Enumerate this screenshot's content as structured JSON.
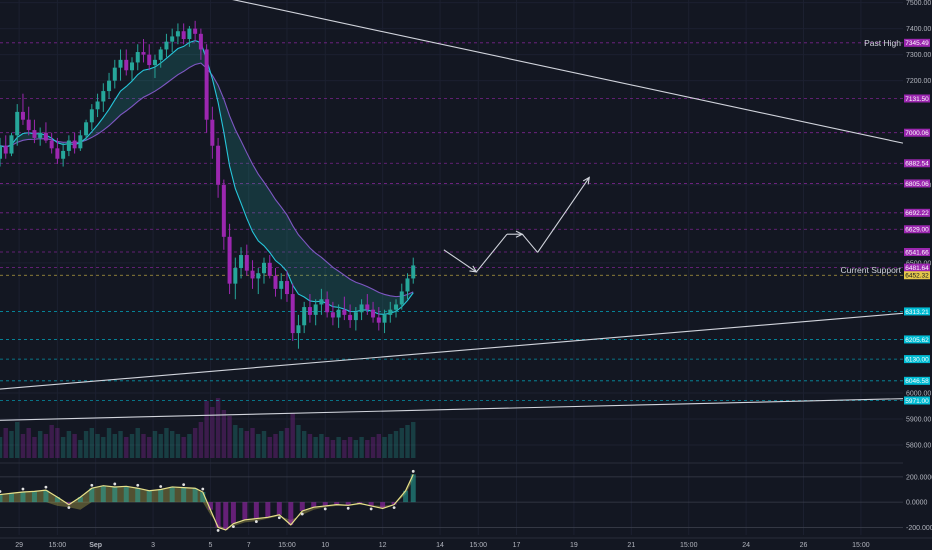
{
  "chart_data": {
    "type": "candlestick",
    "price_axis": {
      "labels": [
        "7500.00",
        "7400.00",
        "7300.00",
        "7200.00",
        "6800.00",
        "6500.00",
        "6000.00",
        "5900.00",
        "5800.00"
      ],
      "range": [
        5750,
        7510
      ]
    },
    "oscillator_axis": {
      "labels": [
        "200.0000",
        "0.0000",
        "-200.0000"
      ],
      "range": [
        -260,
        270
      ]
    },
    "time_axis": {
      "labels": [
        "29",
        "15:00",
        "Sep",
        "3",
        "5",
        "7",
        "15:00",
        "10",
        "12",
        "14",
        "15:00",
        "17",
        "19",
        "21",
        "15:00",
        "24",
        "26",
        "15:00"
      ],
      "positions": [
        0.5,
        1.5,
        2.5,
        4,
        5.5,
        6.5,
        7.5,
        8.5,
        10,
        11.5,
        12.5,
        13.5,
        15,
        16.5,
        18,
        19.5,
        21,
        22.5
      ]
    },
    "annotations": [
      {
        "text": "Past High",
        "price": 7345.49
      },
      {
        "text": "Current Support",
        "price": 6472
      }
    ],
    "price_tags": [
      {
        "label": "7345.49",
        "price": 7345.49,
        "color": "#9c27b0"
      },
      {
        "label": "7131.50",
        "price": 7131.5,
        "color": "#9c27b0"
      },
      {
        "label": "7000.06",
        "price": 7000.06,
        "color": "#9c27b0"
      },
      {
        "label": "6882.54",
        "price": 6882.54,
        "color": "#9c27b0"
      },
      {
        "label": "6805.06",
        "price": 6805.06,
        "color": "#9c27b0"
      },
      {
        "label": "6692.22",
        "price": 6692.22,
        "color": "#9c27b0"
      },
      {
        "label": "6629.00",
        "price": 6629.0,
        "color": "#9c27b0"
      },
      {
        "label": "6541.66",
        "price": 6541.66,
        "color": "#9c27b0"
      },
      {
        "label": "6481.64",
        "price": 6481.64,
        "color": "#9c27b0"
      },
      {
        "label": "6452.32",
        "price": 6452.32,
        "color": "#e6c84a"
      },
      {
        "label": "6313.21",
        "price": 6313.21,
        "color": "#00bcd4"
      },
      {
        "label": "6205.62",
        "price": 6205.62,
        "color": "#00bcd4"
      },
      {
        "label": "6130.00",
        "price": 6130.0,
        "color": "#00bcd4"
      },
      {
        "label": "6046.58",
        "price": 6046.58,
        "color": "#00bcd4"
      },
      {
        "label": "5971.00",
        "price": 5971.0,
        "color": "#00bcd4"
      }
    ],
    "trendlines": [
      {
        "name": "resistance",
        "from": [
          5.5,
          7530
        ],
        "to": [
          23.6,
          6960
        ]
      },
      {
        "name": "support",
        "from": [
          0,
          6015
        ],
        "to": [
          23.6,
          6306
        ]
      },
      {
        "name": "lower",
        "from": [
          0,
          5895
        ],
        "to": [
          23.6,
          5978
        ]
      }
    ],
    "projection_path": [
      [
        11.6,
        6550
      ],
      [
        12.45,
        6465
      ],
      [
        13.25,
        6610
      ],
      [
        13.65,
        6610
      ],
      [
        14.05,
        6540
      ],
      [
        15.4,
        6828
      ]
    ],
    "ohlc": [
      [
        0.0,
        6900,
        6980,
        6870,
        6950
      ],
      [
        0.15,
        6950,
        6990,
        6900,
        6920
      ],
      [
        0.3,
        6920,
        7000,
        6910,
        6990
      ],
      [
        0.45,
        6990,
        7110,
        6950,
        7080
      ],
      [
        0.6,
        7080,
        7150,
        7030,
        7050
      ],
      [
        0.75,
        7050,
        7100,
        6990,
        7010
      ],
      [
        0.9,
        7010,
        7050,
        6960,
        6980
      ],
      [
        1.05,
        6980,
        7020,
        6950,
        7000
      ],
      [
        1.2,
        7000,
        7040,
        6960,
        6970
      ],
      [
        1.35,
        6970,
        7000,
        6920,
        6940
      ],
      [
        1.5,
        6940,
        6980,
        6880,
        6900
      ],
      [
        1.65,
        6900,
        6960,
        6870,
        6930
      ],
      [
        1.8,
        6930,
        6990,
        6910,
        6970
      ],
      [
        1.95,
        6970,
        7000,
        6920,
        6940
      ],
      [
        2.1,
        6940,
        7010,
        6930,
        6990
      ],
      [
        2.25,
        6990,
        7050,
        6970,
        7040
      ],
      [
        2.4,
        7040,
        7110,
        7010,
        7090
      ],
      [
        2.55,
        7090,
        7150,
        7060,
        7120
      ],
      [
        2.7,
        7120,
        7190,
        7080,
        7160
      ],
      [
        2.85,
        7160,
        7230,
        7130,
        7200
      ],
      [
        3.0,
        7200,
        7280,
        7170,
        7250
      ],
      [
        3.15,
        7250,
        7320,
        7200,
        7280
      ],
      [
        3.3,
        7280,
        7320,
        7220,
        7240
      ],
      [
        3.45,
        7240,
        7290,
        7200,
        7270
      ],
      [
        3.6,
        7270,
        7340,
        7240,
        7310
      ],
      [
        3.75,
        7310,
        7360,
        7270,
        7300
      ],
      [
        3.9,
        7300,
        7340,
        7240,
        7260
      ],
      [
        4.05,
        7260,
        7300,
        7210,
        7280
      ],
      [
        4.2,
        7280,
        7330,
        7250,
        7320
      ],
      [
        4.35,
        7320,
        7380,
        7290,
        7350
      ],
      [
        4.5,
        7350,
        7400,
        7310,
        7370
      ],
      [
        4.65,
        7370,
        7420,
        7340,
        7390
      ],
      [
        4.8,
        7390,
        7420,
        7340,
        7360
      ],
      [
        4.95,
        7360,
        7410,
        7330,
        7400
      ],
      [
        5.1,
        7400,
        7430,
        7350,
        7380
      ],
      [
        5.25,
        7380,
        7400,
        7280,
        7320
      ],
      [
        5.4,
        7320,
        7340,
        7000,
        7050
      ],
      [
        5.55,
        7050,
        7100,
        6900,
        6950
      ],
      [
        5.7,
        6950,
        6980,
        6750,
        6800
      ],
      [
        5.85,
        6800,
        6820,
        6550,
        6600
      ],
      [
        6.0,
        6600,
        6650,
        6380,
        6420
      ],
      [
        6.15,
        6420,
        6520,
        6360,
        6480
      ],
      [
        6.3,
        6480,
        6560,
        6440,
        6530
      ],
      [
        6.45,
        6530,
        6570,
        6450,
        6470
      ],
      [
        6.6,
        6470,
        6510,
        6400,
        6440
      ],
      [
        6.75,
        6440,
        6480,
        6380,
        6460
      ],
      [
        6.9,
        6460,
        6520,
        6420,
        6500
      ],
      [
        7.05,
        6500,
        6530,
        6440,
        6450
      ],
      [
        7.2,
        6450,
        6480,
        6370,
        6400
      ],
      [
        7.35,
        6400,
        6460,
        6360,
        6430
      ],
      [
        7.5,
        6430,
        6470,
        6350,
        6380
      ],
      [
        7.65,
        6380,
        6420,
        6200,
        6230
      ],
      [
        7.8,
        6230,
        6300,
        6170,
        6260
      ],
      [
        7.95,
        6260,
        6350,
        6230,
        6330
      ],
      [
        8.1,
        6330,
        6380,
        6270,
        6300
      ],
      [
        8.25,
        6300,
        6360,
        6260,
        6340
      ],
      [
        8.4,
        6340,
        6400,
        6300,
        6360
      ],
      [
        8.55,
        6360,
        6390,
        6290,
        6310
      ],
      [
        8.7,
        6310,
        6350,
        6260,
        6290
      ],
      [
        8.85,
        6290,
        6340,
        6250,
        6320
      ],
      [
        9.0,
        6320,
        6370,
        6280,
        6300
      ],
      [
        9.15,
        6300,
        6340,
        6250,
        6280
      ],
      [
        9.3,
        6280,
        6330,
        6240,
        6310
      ],
      [
        9.45,
        6310,
        6360,
        6280,
        6340
      ],
      [
        9.6,
        6340,
        6380,
        6300,
        6320
      ],
      [
        9.75,
        6320,
        6350,
        6270,
        6290
      ],
      [
        9.9,
        6290,
        6330,
        6240,
        6270
      ],
      [
        10.05,
        6270,
        6320,
        6230,
        6300
      ],
      [
        10.2,
        6300,
        6350,
        6270,
        6320
      ],
      [
        10.35,
        6320,
        6360,
        6290,
        6340
      ],
      [
        10.5,
        6340,
        6420,
        6320,
        6390
      ],
      [
        10.65,
        6390,
        6460,
        6360,
        6440
      ],
      [
        10.8,
        6440,
        6520,
        6420,
        6490
      ]
    ],
    "volume": [
      [
        0.0,
        0.35
      ],
      [
        0.15,
        0.5
      ],
      [
        0.3,
        0.45
      ],
      [
        0.45,
        0.6
      ],
      [
        0.6,
        0.4
      ],
      [
        0.75,
        0.5
      ],
      [
        0.9,
        0.35
      ],
      [
        1.05,
        0.45
      ],
      [
        1.2,
        0.4
      ],
      [
        1.35,
        0.55
      ],
      [
        1.5,
        0.5
      ],
      [
        1.65,
        0.35
      ],
      [
        1.8,
        0.45
      ],
      [
        1.95,
        0.4
      ],
      [
        2.1,
        0.3
      ],
      [
        2.25,
        0.45
      ],
      [
        2.4,
        0.5
      ],
      [
        2.55,
        0.4
      ],
      [
        2.7,
        0.35
      ],
      [
        2.85,
        0.5
      ],
      [
        3.0,
        0.4
      ],
      [
        3.15,
        0.45
      ],
      [
        3.3,
        0.35
      ],
      [
        3.45,
        0.4
      ],
      [
        3.6,
        0.5
      ],
      [
        3.75,
        0.4
      ],
      [
        3.9,
        0.35
      ],
      [
        4.05,
        0.45
      ],
      [
        4.2,
        0.4
      ],
      [
        4.35,
        0.5
      ],
      [
        4.5,
        0.45
      ],
      [
        4.65,
        0.4
      ],
      [
        4.8,
        0.35
      ],
      [
        4.95,
        0.4
      ],
      [
        5.1,
        0.5
      ],
      [
        5.25,
        0.6
      ],
      [
        5.4,
        0.95
      ],
      [
        5.55,
        0.85
      ],
      [
        5.7,
        1.0
      ],
      [
        5.85,
        0.8
      ],
      [
        6.0,
        0.7
      ],
      [
        6.15,
        0.55
      ],
      [
        6.3,
        0.5
      ],
      [
        6.45,
        0.45
      ],
      [
        6.6,
        0.5
      ],
      [
        6.75,
        0.4
      ],
      [
        6.9,
        0.45
      ],
      [
        7.05,
        0.35
      ],
      [
        7.2,
        0.4
      ],
      [
        7.35,
        0.45
      ],
      [
        7.5,
        0.5
      ],
      [
        7.65,
        0.75
      ],
      [
        7.8,
        0.55
      ],
      [
        7.95,
        0.45
      ],
      [
        8.1,
        0.4
      ],
      [
        8.25,
        0.35
      ],
      [
        8.4,
        0.4
      ],
      [
        8.55,
        0.35
      ],
      [
        8.7,
        0.3
      ],
      [
        8.85,
        0.35
      ],
      [
        9.0,
        0.3
      ],
      [
        9.15,
        0.35
      ],
      [
        9.3,
        0.3
      ],
      [
        9.45,
        0.35
      ],
      [
        9.6,
        0.3
      ],
      [
        9.75,
        0.35
      ],
      [
        9.9,
        0.4
      ],
      [
        10.05,
        0.35
      ],
      [
        10.2,
        0.4
      ],
      [
        10.35,
        0.45
      ],
      [
        10.5,
        0.5
      ],
      [
        10.65,
        0.55
      ],
      [
        10.8,
        0.6
      ]
    ],
    "oscillator": [
      [
        0.0,
        60,
        0
      ],
      [
        0.3,
        70,
        0
      ],
      [
        0.6,
        80,
        0
      ],
      [
        0.9,
        85,
        0
      ],
      [
        1.2,
        95,
        0
      ],
      [
        1.5,
        40,
        -30
      ],
      [
        1.8,
        -20,
        -40
      ],
      [
        2.1,
        40,
        -60
      ],
      [
        2.4,
        110,
        0
      ],
      [
        2.7,
        130,
        0
      ],
      [
        3.0,
        120,
        0
      ],
      [
        3.3,
        125,
        0
      ],
      [
        3.6,
        110,
        0
      ],
      [
        3.9,
        90,
        0
      ],
      [
        4.2,
        100,
        0
      ],
      [
        4.5,
        120,
        0
      ],
      [
        4.8,
        115,
        0
      ],
      [
        5.1,
        110,
        0
      ],
      [
        5.3,
        80,
        0
      ],
      [
        5.5,
        -60,
        -100
      ],
      [
        5.7,
        -200,
        -180
      ],
      [
        5.9,
        -220,
        -210
      ],
      [
        6.1,
        -170,
        -190
      ],
      [
        6.4,
        -140,
        -160
      ],
      [
        6.7,
        -130,
        -150
      ],
      [
        7.0,
        -120,
        -130
      ],
      [
        7.3,
        -100,
        -110
      ],
      [
        7.6,
        -180,
        -140
      ],
      [
        7.9,
        -70,
        -100
      ],
      [
        8.2,
        -40,
        -60
      ],
      [
        8.5,
        -30,
        -40
      ],
      [
        8.8,
        -20,
        -30
      ],
      [
        9.1,
        -25,
        -30
      ],
      [
        9.4,
        -10,
        -20
      ],
      [
        9.7,
        -30,
        -25
      ],
      [
        10.0,
        -50,
        -30
      ],
      [
        10.3,
        -20,
        -20
      ],
      [
        10.6,
        90,
        60
      ],
      [
        10.8,
        220,
        180
      ]
    ],
    "time_range": [
      0,
      23.6
    ],
    "colors": {
      "background": "#131722",
      "up": "#26a69a",
      "down": "#9c27b0",
      "fast_ema": "#26c6da",
      "slow_ema": "#7e57c2",
      "oscillator_line": "#e6e08a",
      "text": "#b2b5be"
    }
  }
}
